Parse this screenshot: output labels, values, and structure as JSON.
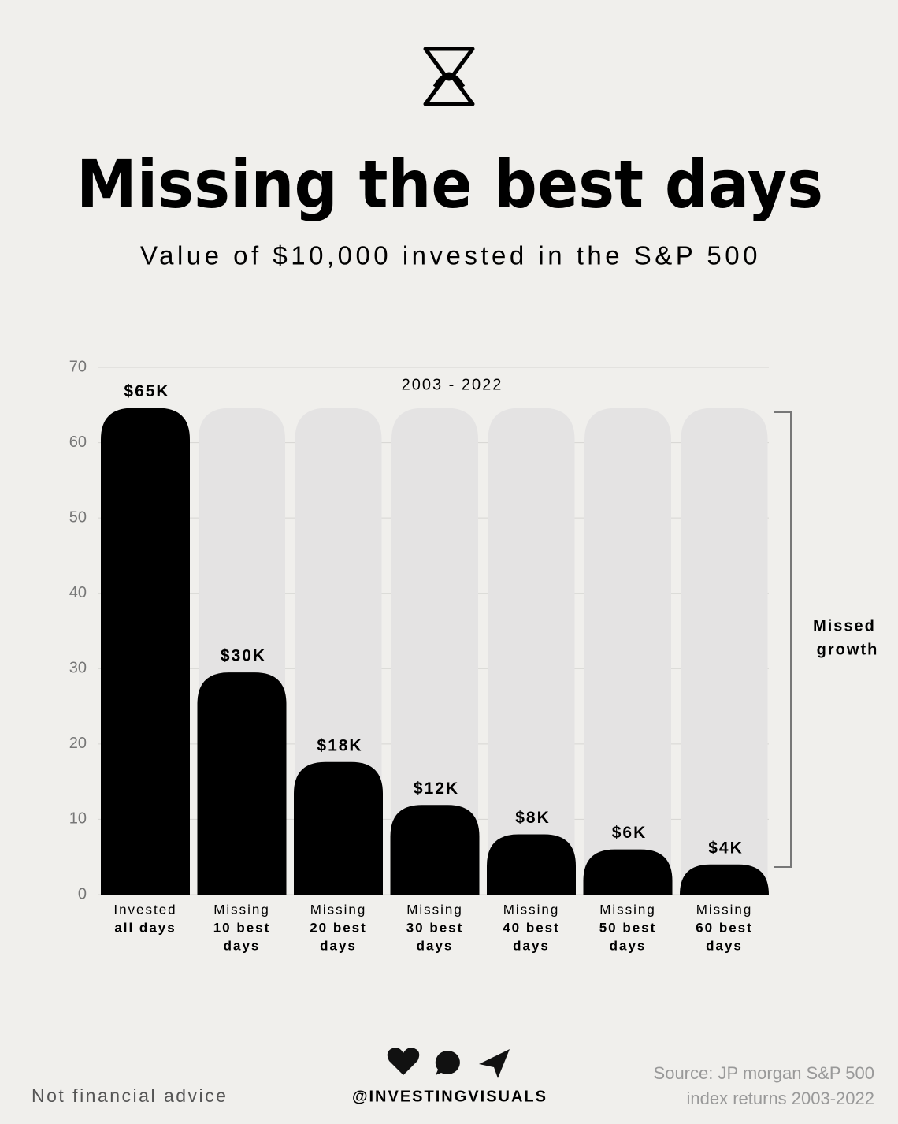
{
  "chart_data": {
    "type": "bar",
    "title": "Missing the best days",
    "subtitle": "Value of $10,000 invested in the S&P 500",
    "period": "2003 - 2022",
    "categories": [
      [
        "Invested",
        "all days"
      ],
      [
        "Missing",
        "10 best",
        "days"
      ],
      [
        "Missing",
        "20 best",
        "days"
      ],
      [
        "Missing",
        "30 best",
        "days"
      ],
      [
        "Missing",
        "40 best",
        "days"
      ],
      [
        "Missing",
        "50 best",
        "days"
      ],
      [
        "Missing",
        "60 best",
        "days"
      ]
    ],
    "values": [
      64.6,
      29.5,
      17.6,
      11.9,
      8,
      6,
      4
    ],
    "value_labels": [
      "$65K",
      "$30K",
      "$18K",
      "$12K",
      "$8K",
      "$6K",
      "$4K"
    ],
    "color": "#000000",
    "background_color": "#e4e3e3",
    "ylim": [
      0,
      70
    ],
    "yticks": [
      0,
      10,
      20,
      30,
      40,
      50,
      60,
      70
    ],
    "grid": true,
    "annotation": [
      "Missed",
      "growth"
    ]
  },
  "footer": {
    "disclaimer": "Not financial advice",
    "handle": "@INVESTINGVISUALS",
    "source": [
      "Source: JP morgan S&P 500",
      "index returns 2003-2022"
    ]
  }
}
